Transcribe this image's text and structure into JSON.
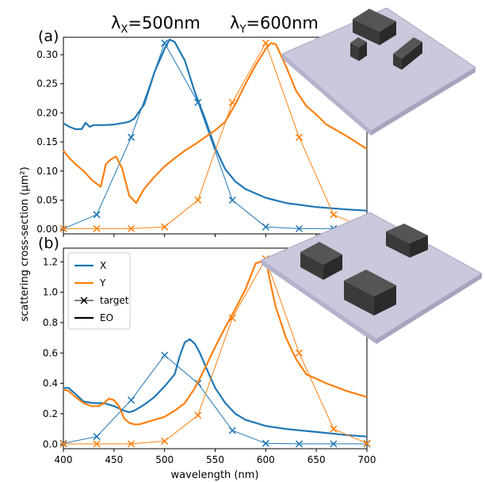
{
  "figure": {
    "header_x": "λX=500nm",
    "header_y": "λY=600nm",
    "header_x_parts": {
      "lambda": "λ",
      "sub": "X",
      "rest": "=500nm"
    },
    "header_y_parts": {
      "lambda": "λ",
      "sub": "Y",
      "rest": "=600nm"
    },
    "ylabel": "scattering cross-section (μm²)",
    "xlabel": "wavelength (nm)"
  },
  "colors": {
    "X": "#1f77b4",
    "Y": "#ff7f0e",
    "substrate": "#c9c8dc",
    "block": "#3a3a3a"
  },
  "chart_data": [
    {
      "panel_label": "(a)",
      "type": "line",
      "xlim": [
        400,
        700
      ],
      "ylim": [
        -0.008,
        0.33
      ],
      "xticks": [
        400,
        450,
        500,
        550,
        600,
        650,
        700
      ],
      "yticks": [
        0.0,
        0.05,
        0.1,
        0.15,
        0.2,
        0.25,
        0.3
      ],
      "ytick_labels": [
        "0.00",
        "0.05",
        "0.10",
        "0.15",
        "0.20",
        "0.25",
        "0.30"
      ],
      "show_xtick_labels": false,
      "legend": false,
      "series": [
        {
          "name": "X",
          "kind": "EO",
          "x": [
            400,
            406,
            412,
            418,
            422,
            426,
            430,
            440,
            450,
            460,
            465,
            470,
            480,
            490,
            500,
            505,
            510,
            520,
            530,
            540,
            550,
            560,
            570,
            580,
            600,
            620,
            650,
            680,
            700
          ],
          "y": [
            0.182,
            0.176,
            0.172,
            0.172,
            0.183,
            0.176,
            0.179,
            0.179,
            0.18,
            0.183,
            0.185,
            0.19,
            0.215,
            0.27,
            0.31,
            0.326,
            0.322,
            0.29,
            0.235,
            0.19,
            0.14,
            0.103,
            0.082,
            0.069,
            0.054,
            0.045,
            0.038,
            0.034,
            0.032
          ]
        },
        {
          "name": "X",
          "kind": "target",
          "x": [
            400,
            433,
            467,
            500,
            533,
            567,
            600,
            633,
            667,
            700
          ],
          "y": [
            0.001,
            0.025,
            0.158,
            0.32,
            0.218,
            0.05,
            0.004,
            0.001,
            0.001,
            0.001
          ]
        },
        {
          "name": "Y",
          "kind": "EO",
          "x": [
            400,
            406,
            412,
            420,
            428,
            433,
            437,
            442,
            447,
            452,
            458,
            465,
            472,
            480,
            490,
            500,
            510,
            520,
            530,
            540,
            550,
            560,
            570,
            580,
            590,
            600,
            605,
            610,
            620,
            630,
            640,
            650,
            660,
            680,
            700
          ],
          "y": [
            0.135,
            0.122,
            0.112,
            0.1,
            0.085,
            0.078,
            0.073,
            0.112,
            0.12,
            0.125,
            0.105,
            0.058,
            0.045,
            0.07,
            0.09,
            0.108,
            0.122,
            0.135,
            0.146,
            0.158,
            0.17,
            0.185,
            0.215,
            0.25,
            0.282,
            0.31,
            0.32,
            0.318,
            0.28,
            0.238,
            0.212,
            0.197,
            0.18,
            0.16,
            0.138
          ]
        },
        {
          "name": "Y",
          "kind": "target",
          "x": [
            400,
            433,
            467,
            500,
            533,
            567,
            600,
            633,
            667,
            700
          ],
          "y": [
            0.001,
            0.001,
            0.001,
            0.004,
            0.05,
            0.218,
            0.32,
            0.158,
            0.025,
            0.001
          ]
        }
      ]
    },
    {
      "panel_label": "(b)",
      "type": "line",
      "xlim": [
        400,
        700
      ],
      "ylim": [
        -0.03,
        1.29
      ],
      "xticks": [
        400,
        450,
        500,
        550,
        600,
        650,
        700
      ],
      "xtick_labels": [
        "400",
        "450",
        "500",
        "550",
        "600",
        "650",
        "700"
      ],
      "yticks": [
        0.0,
        0.2,
        0.4,
        0.6,
        0.8,
        1.0,
        1.2
      ],
      "ytick_labels": [
        "0.0",
        "0.2",
        "0.4",
        "0.6",
        "0.8",
        "1.0",
        "1.2"
      ],
      "show_xtick_labels": true,
      "legend": true,
      "legend_position": "upper-left",
      "legend_entries": [
        {
          "label": "X",
          "style": "line",
          "color_key": "X"
        },
        {
          "label": "Y",
          "style": "line",
          "color_key": "Y"
        },
        {
          "label": "target",
          "style": "marker-line",
          "color_key": "black"
        },
        {
          "label": "EO",
          "style": "line",
          "color_key": "black"
        }
      ],
      "series": [
        {
          "name": "X",
          "kind": "EO",
          "x": [
            400,
            405,
            412,
            420,
            430,
            440,
            450,
            460,
            465,
            470,
            480,
            490,
            500,
            510,
            515,
            520,
            525,
            530,
            535,
            540,
            550,
            560,
            570,
            580,
            600,
            620,
            650,
            680,
            700
          ],
          "y": [
            0.37,
            0.37,
            0.33,
            0.28,
            0.27,
            0.27,
            0.25,
            0.22,
            0.21,
            0.22,
            0.26,
            0.31,
            0.38,
            0.46,
            0.58,
            0.67,
            0.69,
            0.66,
            0.6,
            0.52,
            0.37,
            0.27,
            0.2,
            0.16,
            0.12,
            0.1,
            0.08,
            0.06,
            0.05
          ]
        },
        {
          "name": "X",
          "kind": "target",
          "x": [
            400,
            433,
            467,
            500,
            533,
            567,
            600,
            633,
            667,
            700
          ],
          "y": [
            0.005,
            0.05,
            0.29,
            0.585,
            0.4,
            0.09,
            0.005,
            0.002,
            0.002,
            0.002
          ]
        },
        {
          "name": "Y",
          "kind": "EO",
          "x": [
            400,
            405,
            412,
            420,
            428,
            435,
            440,
            445,
            450,
            455,
            460,
            465,
            470,
            475,
            480,
            490,
            500,
            510,
            520,
            530,
            540,
            550,
            560,
            570,
            580,
            590,
            595,
            600,
            605,
            610,
            615,
            620,
            630,
            640,
            650,
            660,
            680,
            700
          ],
          "y": [
            0.36,
            0.35,
            0.31,
            0.27,
            0.25,
            0.25,
            0.27,
            0.3,
            0.29,
            0.25,
            0.17,
            0.14,
            0.13,
            0.13,
            0.14,
            0.16,
            0.18,
            0.22,
            0.27,
            0.37,
            0.5,
            0.64,
            0.77,
            0.89,
            1.02,
            1.19,
            1.2,
            1.22,
            1.05,
            0.9,
            0.8,
            0.7,
            0.56,
            0.46,
            0.43,
            0.4,
            0.35,
            0.31
          ]
        },
        {
          "name": "Y",
          "kind": "target",
          "x": [
            400,
            433,
            467,
            500,
            533,
            567,
            600,
            633,
            667,
            700
          ],
          "y": [
            0.002,
            0.002,
            0.002,
            0.02,
            0.19,
            0.83,
            1.22,
            0.6,
            0.1,
            0.005
          ]
        }
      ]
    }
  ]
}
